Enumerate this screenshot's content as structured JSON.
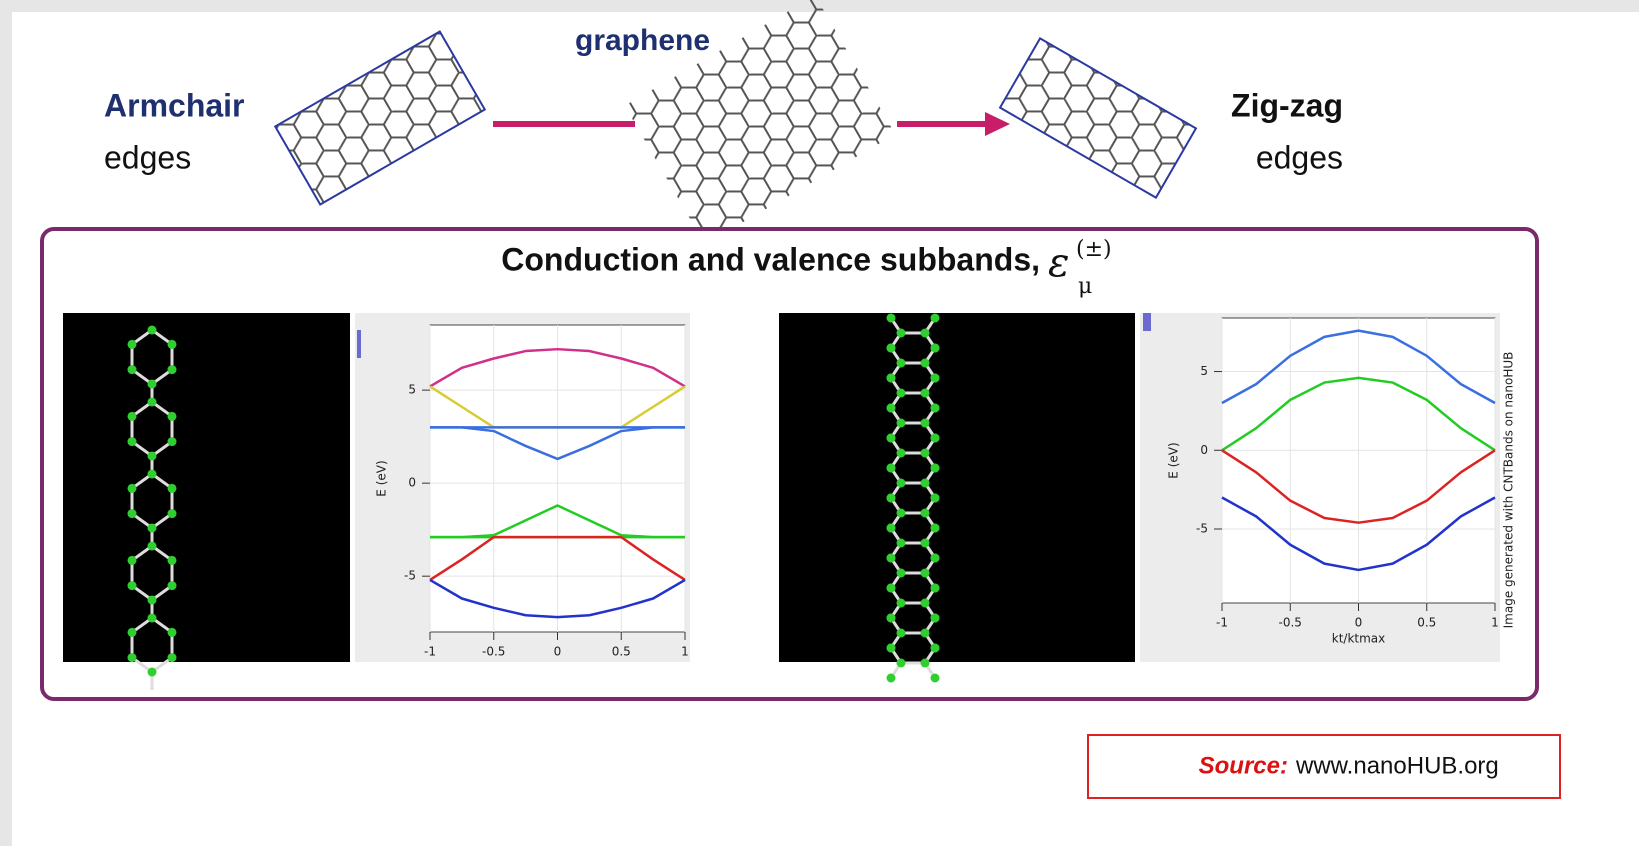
{
  "header": {
    "armchair_label": "Armchair",
    "armchair_sub": "edges",
    "graphene_label": "graphene",
    "zigzag_label": "Zig-zag",
    "zigzag_sub": "edges"
  },
  "panel": {
    "title": "Conduction and valence subbands,",
    "symbol": "ε",
    "superscript": "(±)",
    "subscript": "μ"
  },
  "charts": [
    {
      "type": "line",
      "y_label": "E (eV)",
      "xlim": [
        -1,
        1
      ],
      "ylim": [
        -8,
        8.5
      ],
      "xticks": [
        -1,
        -0.5,
        0,
        0.5,
        1
      ],
      "yticks": [
        -5,
        0,
        5
      ],
      "grid": true,
      "x": [
        -1,
        -0.75,
        -0.5,
        -0.25,
        0,
        0.25,
        0.5,
        0.75,
        1
      ],
      "series": [
        {
          "color": "#d0308a",
          "values": [
            5.2,
            6.2,
            6.7,
            7.1,
            7.2,
            7.1,
            6.7,
            6.2,
            5.2
          ]
        },
        {
          "color": "#d8cc30",
          "values": [
            5.2,
            4.1,
            3,
            3,
            3,
            3,
            3,
            4.1,
            5.2
          ]
        },
        {
          "color": "#3a6fe0",
          "values": [
            3,
            3,
            3,
            3,
            3,
            3,
            3,
            3,
            3
          ]
        },
        {
          "color": "#3a6fe0",
          "values": [
            3,
            3,
            2.8,
            2,
            1.3,
            2,
            2.8,
            3,
            3
          ]
        },
        {
          "color": "#22cc22",
          "values": [
            -2.9,
            -2.9,
            -2.9,
            -2.9,
            -2.9,
            -2.9,
            -2.9,
            -2.9,
            -2.9
          ]
        },
        {
          "color": "#22cc22",
          "values": [
            -2.9,
            -2.9,
            -2.8,
            -2,
            -1.2,
            -2,
            -2.8,
            -2.9,
            -2.9
          ]
        },
        {
          "color": "#dd2222",
          "values": [
            -5.2,
            -4.1,
            -2.9,
            -2.9,
            -2.9,
            -2.9,
            -2.9,
            -4.1,
            -5.2
          ]
        },
        {
          "color": "#2233cc",
          "values": [
            -5.2,
            -6.2,
            -6.7,
            -7.1,
            -7.2,
            -7.1,
            -6.7,
            -6.2,
            -5.2
          ]
        }
      ]
    },
    {
      "type": "line",
      "y_label": "E (eV)",
      "x_label": "kt/ktmax",
      "side_note": "Image generated with CNTBands on nanoHUB",
      "xlim": [
        -1,
        1
      ],
      "ylim": [
        -9.7,
        8.4
      ],
      "xticks": [
        -1,
        -0.5,
        0,
        0.5,
        1
      ],
      "yticks": [
        -5,
        0,
        5
      ],
      "grid": true,
      "x": [
        -1,
        -0.75,
        -0.5,
        -0.25,
        0,
        0.25,
        0.5,
        0.75,
        1
      ],
      "series": [
        {
          "color": "#3a6fe0",
          "values": [
            3,
            4.2,
            6,
            7.2,
            7.6,
            7.2,
            6,
            4.2,
            3
          ]
        },
        {
          "color": "#22cc22",
          "values": [
            0,
            1.4,
            3.2,
            4.3,
            4.6,
            4.3,
            3.2,
            1.4,
            0
          ]
        },
        {
          "color": "#dd2222",
          "values": [
            0,
            -1.4,
            -3.2,
            -4.3,
            -4.6,
            -4.3,
            -3.2,
            -1.4,
            0
          ]
        },
        {
          "color": "#2233cc",
          "values": [
            -3,
            -4.2,
            -6,
            -7.2,
            -7.6,
            -7.2,
            -6,
            -4.2,
            -3
          ]
        }
      ]
    }
  ],
  "source": {
    "label": "Source:",
    "text": "www.nanoHUB.org"
  }
}
